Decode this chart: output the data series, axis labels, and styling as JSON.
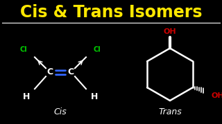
{
  "bg_color": "#000000",
  "title": "Cis & Trans Isomers",
  "title_color": "#FFE800",
  "title_fontsize": 17,
  "title_fontstyle": "bold",
  "line_color": "#FFFFFF",
  "cis_label": "Cis",
  "trans_label": "Trans",
  "label_color": "#FFFFFF",
  "cl_color": "#00CC00",
  "oh_color": "#CC0000",
  "double_bond_color": "#3366FF",
  "atom_color": "#FFFFFF",
  "ring_color": "#FFFFFF",
  "figw": 3.2,
  "figh": 1.8,
  "dpi": 100
}
